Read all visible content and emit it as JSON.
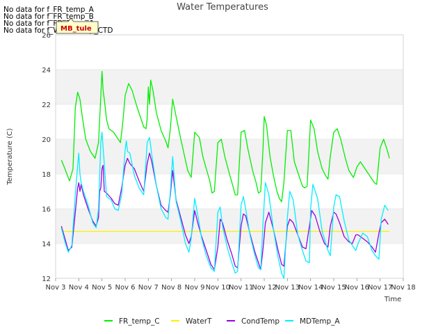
{
  "notices": [
    "No data for f_FR_temp_A",
    "No data for f_FR_temp_B",
    "No data for f_FD_Temp_1",
    "No data for f_WaterTemp_CTD"
  ],
  "tooltip": "MB_tule",
  "colors": {
    "FR_temp_C": "#00ee00",
    "WaterT": "#ffee00",
    "CondTemp": "#9900dd",
    "MDTemp_A": "#00eeff",
    "band": "#f2f2f2",
    "grid": "#dddddd"
  },
  "chart_data": {
    "type": "line",
    "title": "Water Temperatures",
    "xlabel": "Time",
    "ylabel": "Temperature (C)",
    "xlim": [
      3,
      18
    ],
    "ylim": [
      12,
      26
    ],
    "x_ticks": [
      3,
      4,
      5,
      6,
      7,
      8,
      9,
      10,
      11,
      12,
      13,
      14,
      15,
      16,
      17,
      18
    ],
    "x_tick_labels": [
      "Nov 3",
      "Nov 4",
      "Nov 5",
      "Nov 6",
      "Nov 7",
      "Nov 8",
      "Nov 9",
      "Nov 10",
      "Nov 11",
      "Nov 12",
      "Nov 13",
      "Nov 14",
      "Nov 15",
      "Nov 16",
      "Nov 17",
      "Nov 18"
    ],
    "y_ticks": [
      12,
      14,
      16,
      18,
      20,
      22,
      24,
      26
    ],
    "y_tick_labels": [
      "12",
      "14",
      "16",
      "18",
      "20",
      "22",
      "24",
      "26"
    ],
    "legend_position": "bottom",
    "series": [
      {
        "name": "FR_temp_C",
        "x": [
          3.25,
          3.4,
          3.6,
          3.75,
          3.85,
          3.95,
          4.05,
          4.15,
          4.3,
          4.5,
          4.7,
          4.85,
          4.95,
          5.0,
          5.05,
          5.1,
          5.2,
          5.3,
          5.5,
          5.7,
          5.8,
          5.9,
          6.0,
          6.15,
          6.3,
          6.5,
          6.65,
          6.8,
          6.9,
          6.95,
          7.0,
          7.05,
          7.1,
          7.2,
          7.35,
          7.55,
          7.75,
          7.85,
          7.95,
          8.05,
          8.2,
          8.4,
          8.55,
          8.7,
          8.85,
          9.0,
          9.2,
          9.35,
          9.5,
          9.65,
          9.75,
          9.85,
          10.0,
          10.15,
          10.3,
          10.5,
          10.65,
          10.75,
          10.85,
          11.0,
          11.15,
          11.3,
          11.5,
          11.65,
          11.75,
          11.85,
          11.95,
          12.0,
          12.1,
          12.25,
          12.4,
          12.55,
          12.65,
          12.75,
          12.85,
          13.0,
          13.15,
          13.3,
          13.5,
          13.65,
          13.75,
          13.85,
          14.0,
          14.15,
          14.3,
          14.5,
          14.65,
          14.75,
          14.85,
          15.0,
          15.15,
          15.3,
          15.5,
          15.65,
          15.75,
          15.85,
          16.0,
          16.15,
          16.3,
          16.5,
          16.65,
          16.75,
          16.85,
          17.0,
          17.15,
          17.3,
          17.4
        ],
        "y": [
          18.8,
          18.3,
          17.6,
          18.3,
          21.8,
          22.7,
          22.3,
          21.3,
          20.0,
          19.3,
          18.9,
          19.8,
          22.5,
          23.9,
          22.8,
          22.3,
          21.1,
          20.6,
          20.4,
          20.0,
          19.8,
          21.0,
          22.5,
          23.2,
          22.8,
          21.9,
          21.3,
          20.7,
          20.6,
          21.2,
          23.0,
          22.0,
          23.4,
          22.8,
          21.5,
          20.5,
          19.9,
          19.5,
          20.6,
          22.3,
          21.3,
          20.0,
          19.1,
          18.2,
          17.8,
          20.4,
          20.1,
          19.0,
          18.3,
          17.6,
          16.9,
          17.0,
          19.8,
          20.0,
          19.0,
          18.0,
          17.3,
          16.8,
          16.8,
          20.4,
          20.5,
          19.4,
          18.2,
          17.5,
          16.9,
          17.0,
          19.5,
          21.3,
          20.8,
          19.0,
          17.9,
          17.0,
          16.6,
          16.4,
          17.5,
          20.5,
          20.5,
          18.7,
          17.9,
          17.3,
          17.2,
          17.3,
          21.1,
          20.6,
          19.3,
          18.3,
          17.9,
          17.7,
          19.0,
          20.4,
          20.6,
          20.0,
          18.9,
          18.2,
          18.0,
          17.8,
          18.4,
          18.7,
          18.4,
          18.0,
          17.7,
          17.5,
          17.4,
          19.5,
          20.0,
          19.4,
          18.9
        ]
      },
      {
        "name": "WaterT",
        "x": [
          3.25,
          17.4
        ],
        "y": [
          14.7,
          14.7
        ]
      },
      {
        "name": "CondTemp",
        "x": [
          3.25,
          3.4,
          3.55,
          3.7,
          3.85,
          3.95,
          4.0,
          4.05,
          4.1,
          4.2,
          4.4,
          4.6,
          4.75,
          4.85,
          4.9,
          4.95,
          5.0,
          5.05,
          5.1,
          5.2,
          5.4,
          5.55,
          5.7,
          5.85,
          6.0,
          6.1,
          6.2,
          6.4,
          6.6,
          6.8,
          6.95,
          7.05,
          7.15,
          7.35,
          7.55,
          7.75,
          7.85,
          7.95,
          8.05,
          8.2,
          8.4,
          8.6,
          8.75,
          8.85,
          9.0,
          9.15,
          9.3,
          9.5,
          9.7,
          9.85,
          10.0,
          10.1,
          10.2,
          10.4,
          10.6,
          10.75,
          10.85,
          11.0,
          11.1,
          11.2,
          11.4,
          11.6,
          11.75,
          11.85,
          11.95,
          12.05,
          12.2,
          12.4,
          12.6,
          12.75,
          12.85,
          13.0,
          13.1,
          13.25,
          13.45,
          13.65,
          13.8,
          13.95,
          14.05,
          14.2,
          14.4,
          14.6,
          14.75,
          14.85,
          15.0,
          15.1,
          15.25,
          15.45,
          15.65,
          15.8,
          15.95,
          16.05,
          16.25,
          16.45,
          16.65,
          16.8,
          16.95,
          17.05,
          17.2,
          17.35
        ],
        "y": [
          15.0,
          14.3,
          13.6,
          13.8,
          15.8,
          17.2,
          17.5,
          17.0,
          17.4,
          16.8,
          16.0,
          15.3,
          15.0,
          15.5,
          17.0,
          17.2,
          18.3,
          18.5,
          17.0,
          16.9,
          16.6,
          16.3,
          16.2,
          17.2,
          18.5,
          18.9,
          18.6,
          18.3,
          17.6,
          17.0,
          18.6,
          19.2,
          18.7,
          17.3,
          16.2,
          15.9,
          15.8,
          16.8,
          18.2,
          16.5,
          15.5,
          14.5,
          14.0,
          14.4,
          15.9,
          15.1,
          14.4,
          13.6,
          12.8,
          12.5,
          13.8,
          15.4,
          15.2,
          14.2,
          13.4,
          12.7,
          12.6,
          15.0,
          15.7,
          15.6,
          14.5,
          13.5,
          12.9,
          12.5,
          13.7,
          15.2,
          15.8,
          14.8,
          13.6,
          12.8,
          12.7,
          15.0,
          15.4,
          15.2,
          14.5,
          13.8,
          13.7,
          15.0,
          15.9,
          15.6,
          14.7,
          14.0,
          13.8,
          15.0,
          15.8,
          15.7,
          15.2,
          14.4,
          14.1,
          14.0,
          14.5,
          14.5,
          14.3,
          14.1,
          13.8,
          13.5,
          14.6,
          15.2,
          15.4,
          15.1
        ]
      },
      {
        "name": "MDTemp_A",
        "x": [
          3.25,
          3.4,
          3.55,
          3.7,
          3.85,
          3.95,
          4.0,
          4.05,
          4.1,
          4.2,
          4.4,
          4.6,
          4.75,
          4.85,
          4.95,
          5.0,
          5.05,
          5.1,
          5.2,
          5.4,
          5.55,
          5.7,
          5.85,
          6.0,
          6.05,
          6.1,
          6.2,
          6.4,
          6.6,
          6.8,
          6.95,
          7.05,
          7.15,
          7.35,
          7.55,
          7.75,
          7.85,
          7.95,
          8.05,
          8.2,
          8.4,
          8.6,
          8.75,
          8.85,
          9.0,
          9.15,
          9.3,
          9.5,
          9.7,
          9.85,
          10.0,
          10.1,
          10.2,
          10.4,
          10.6,
          10.75,
          10.85,
          11.0,
          11.1,
          11.2,
          11.4,
          11.6,
          11.75,
          11.85,
          11.95,
          12.05,
          12.2,
          12.4,
          12.6,
          12.75,
          12.85,
          13.0,
          13.1,
          13.25,
          13.45,
          13.65,
          13.8,
          13.95,
          14.0,
          14.1,
          14.3,
          14.5,
          14.75,
          14.85,
          15.0,
          15.1,
          15.25,
          15.45,
          15.65,
          15.8,
          15.95,
          16.05,
          16.25,
          16.45,
          16.65,
          16.8,
          16.95,
          17.05,
          17.2,
          17.35
        ],
        "y": [
          14.9,
          14.1,
          13.5,
          13.9,
          16.8,
          18.5,
          19.2,
          18.0,
          17.5,
          17.0,
          16.2,
          15.2,
          14.9,
          16.0,
          19.8,
          20.4,
          19.5,
          18.6,
          16.7,
          16.5,
          16.0,
          15.9,
          16.8,
          19.4,
          19.9,
          19.3,
          19.2,
          17.9,
          17.2,
          16.8,
          19.8,
          20.1,
          19.1,
          17.3,
          16.0,
          15.5,
          15.4,
          17.0,
          19.0,
          16.4,
          15.3,
          14.0,
          13.5,
          14.3,
          16.6,
          15.5,
          14.3,
          13.3,
          12.6,
          12.4,
          15.8,
          16.1,
          15.0,
          13.8,
          12.9,
          12.3,
          12.4,
          16.2,
          16.7,
          16.0,
          14.4,
          13.3,
          12.6,
          12.5,
          15.2,
          17.5,
          16.8,
          14.8,
          13.2,
          12.3,
          12.0,
          15.5,
          17.0,
          16.5,
          14.5,
          13.6,
          13.0,
          12.9,
          16.0,
          17.4,
          16.6,
          14.7,
          13.6,
          13.3,
          16.1,
          16.8,
          16.7,
          15.3,
          14.2,
          13.9,
          13.6,
          14.0,
          14.6,
          14.4,
          13.6,
          13.3,
          13.1,
          15.4,
          16.2,
          15.9
        ]
      }
    ]
  }
}
